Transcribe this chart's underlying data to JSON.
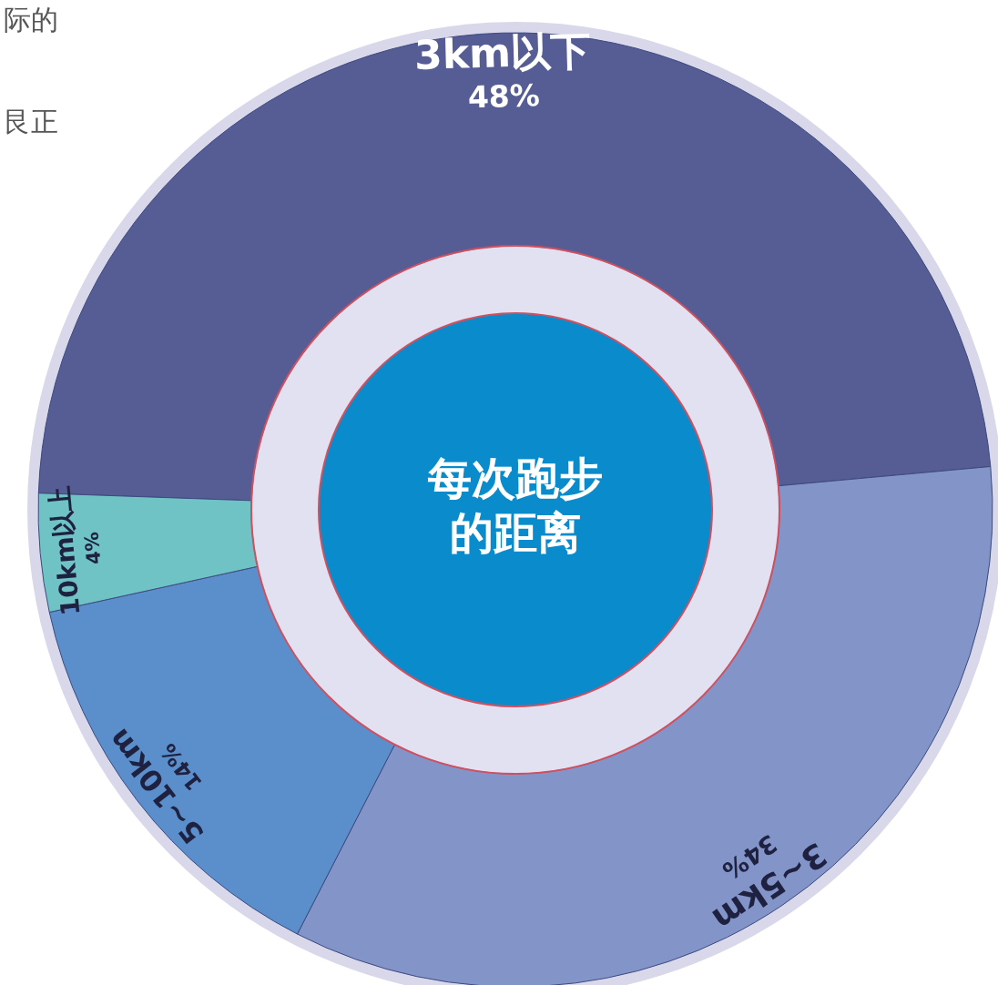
{
  "chart_data": {
    "type": "donut",
    "title": "每次跑步的距离",
    "categories": [
      "3km以下",
      "3~5km",
      "5~10km",
      "10km以上"
    ],
    "values": [
      48,
      34,
      14,
      4
    ],
    "value_labels": [
      "48%",
      "34%",
      "14%",
      "4%"
    ],
    "colors": [
      "#565c94",
      "#8294c8",
      "#5b8fcc",
      "#6fc3c4"
    ],
    "annotations": [
      "际的",
      "艮正"
    ]
  }
}
